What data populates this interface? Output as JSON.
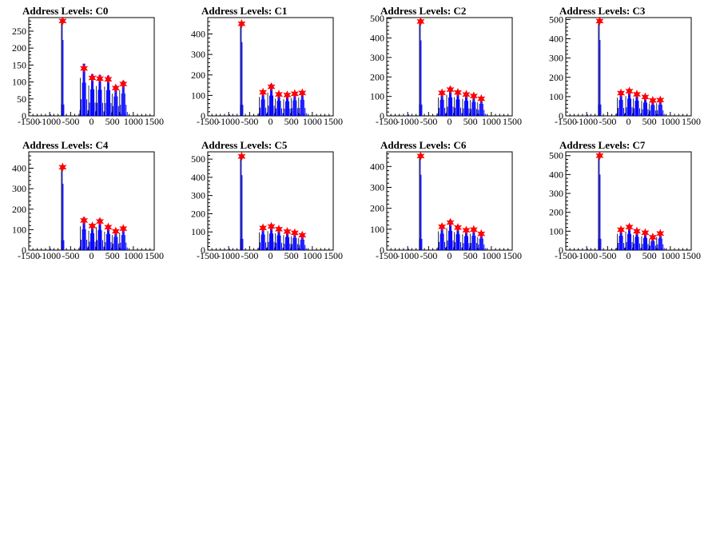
{
  "colors": {
    "histogram": "#0000ff",
    "marker": "#ff0000",
    "axis": "#000000",
    "background": "#ffffff"
  },
  "chart_data": [
    {
      "type": "bar",
      "title": "Address Levels: C0",
      "xlim": [
        -1500,
        1500
      ],
      "ylim": [
        0,
        290
      ],
      "xticks": [
        "-1500",
        "-1000",
        "-500",
        "0",
        "500",
        "1000",
        "1500"
      ],
      "yticks": [
        "0",
        "50",
        "100",
        "150",
        "200",
        "250"
      ],
      "peaks": [
        {
          "x": -690,
          "y": 280
        },
        {
          "x": -180,
          "y": 140
        },
        {
          "x": 20,
          "y": 112
        },
        {
          "x": 200,
          "y": 110
        },
        {
          "x": 400,
          "y": 108
        },
        {
          "x": 580,
          "y": 82
        },
        {
          "x": 760,
          "y": 94
        }
      ]
    },
    {
      "type": "bar",
      "title": "Address Levels: C1",
      "xlim": [
        -1500,
        1500
      ],
      "ylim": [
        0,
        480
      ],
      "xticks": [
        "-1500",
        "-1000",
        "-500",
        "0",
        "500",
        "1000",
        "1500"
      ],
      "yticks": [
        "0",
        "100",
        "200",
        "300",
        "400"
      ],
      "peaks": [
        {
          "x": -690,
          "y": 450
        },
        {
          "x": -180,
          "y": 115
        },
        {
          "x": 20,
          "y": 142
        },
        {
          "x": 200,
          "y": 105
        },
        {
          "x": 400,
          "y": 102
        },
        {
          "x": 580,
          "y": 108
        },
        {
          "x": 760,
          "y": 112
        }
      ]
    },
    {
      "type": "bar",
      "title": "Address Levels: C2",
      "xlim": [
        -1500,
        1500
      ],
      "ylim": [
        0,
        505
      ],
      "xticks": [
        "-1500",
        "-1000",
        "-500",
        "0",
        "500",
        "1000",
        "1500"
      ],
      "yticks": [
        "0",
        "100",
        "200",
        "300",
        "400",
        "500"
      ],
      "peaks": [
        {
          "x": -690,
          "y": 485
        },
        {
          "x": -180,
          "y": 118
        },
        {
          "x": 20,
          "y": 135
        },
        {
          "x": 200,
          "y": 120
        },
        {
          "x": 400,
          "y": 110
        },
        {
          "x": 580,
          "y": 102
        },
        {
          "x": 760,
          "y": 88
        }
      ]
    },
    {
      "type": "bar",
      "title": "Address Levels: C3",
      "xlim": [
        -1500,
        1500
      ],
      "ylim": [
        0,
        510
      ],
      "xticks": [
        "-1500",
        "-1000",
        "-500",
        "0",
        "500",
        "1000",
        "1500"
      ],
      "yticks": [
        "0",
        "100",
        "200",
        "300",
        "400",
        "500"
      ],
      "peaks": [
        {
          "x": -690,
          "y": 492
        },
        {
          "x": -180,
          "y": 118
        },
        {
          "x": 20,
          "y": 128
        },
        {
          "x": 200,
          "y": 112
        },
        {
          "x": 400,
          "y": 98
        },
        {
          "x": 580,
          "y": 80
        },
        {
          "x": 760,
          "y": 82
        }
      ]
    },
    {
      "type": "bar",
      "title": "Address Levels: C4",
      "xlim": [
        -1500,
        1500
      ],
      "ylim": [
        0,
        480
      ],
      "xticks": [
        "-1500",
        "-1000",
        "-500",
        "0",
        "500",
        "1000",
        "1500"
      ],
      "yticks": [
        "0",
        "100",
        "200",
        "300",
        "400"
      ],
      "peaks": [
        {
          "x": -690,
          "y": 405
        },
        {
          "x": -180,
          "y": 145
        },
        {
          "x": 20,
          "y": 118
        },
        {
          "x": 200,
          "y": 140
        },
        {
          "x": 400,
          "y": 112
        },
        {
          "x": 580,
          "y": 92
        },
        {
          "x": 760,
          "y": 105
        }
      ]
    },
    {
      "type": "bar",
      "title": "Address Levels: C5",
      "xlim": [
        -1500,
        1500
      ],
      "ylim": [
        0,
        540
      ],
      "xticks": [
        "-1500",
        "-1000",
        "-500",
        "0",
        "500",
        "1000",
        "1500"
      ],
      "yticks": [
        "0",
        "100",
        "200",
        "300",
        "400",
        "500"
      ],
      "peaks": [
        {
          "x": -690,
          "y": 515
        },
        {
          "x": -180,
          "y": 122
        },
        {
          "x": 20,
          "y": 130
        },
        {
          "x": 200,
          "y": 115
        },
        {
          "x": 400,
          "y": 102
        },
        {
          "x": 580,
          "y": 95
        },
        {
          "x": 760,
          "y": 82
        }
      ]
    },
    {
      "type": "bar",
      "title": "Address Levels: C6",
      "xlim": [
        -1500,
        1500
      ],
      "ylim": [
        0,
        470
      ],
      "xticks": [
        "-1500",
        "-1000",
        "-500",
        "0",
        "500",
        "1000",
        "1500"
      ],
      "yticks": [
        "0",
        "100",
        "200",
        "300",
        "400"
      ],
      "peaks": [
        {
          "x": -690,
          "y": 450
        },
        {
          "x": -180,
          "y": 112
        },
        {
          "x": 20,
          "y": 132
        },
        {
          "x": 200,
          "y": 108
        },
        {
          "x": 400,
          "y": 95
        },
        {
          "x": 580,
          "y": 98
        },
        {
          "x": 760,
          "y": 78
        }
      ]
    },
    {
      "type": "bar",
      "title": "Address Levels: C7",
      "xlim": [
        -1500,
        1500
      ],
      "ylim": [
        0,
        520
      ],
      "xticks": [
        "-1500",
        "-1000",
        "-500",
        "0",
        "500",
        "1000",
        "1500"
      ],
      "yticks": [
        "0",
        "100",
        "200",
        "300",
        "400",
        "500"
      ],
      "peaks": [
        {
          "x": -690,
          "y": 500
        },
        {
          "x": -180,
          "y": 108
        },
        {
          "x": 20,
          "y": 122
        },
        {
          "x": 200,
          "y": 100
        },
        {
          "x": 400,
          "y": 92
        },
        {
          "x": 580,
          "y": 68
        },
        {
          "x": 760,
          "y": 88
        }
      ]
    }
  ]
}
